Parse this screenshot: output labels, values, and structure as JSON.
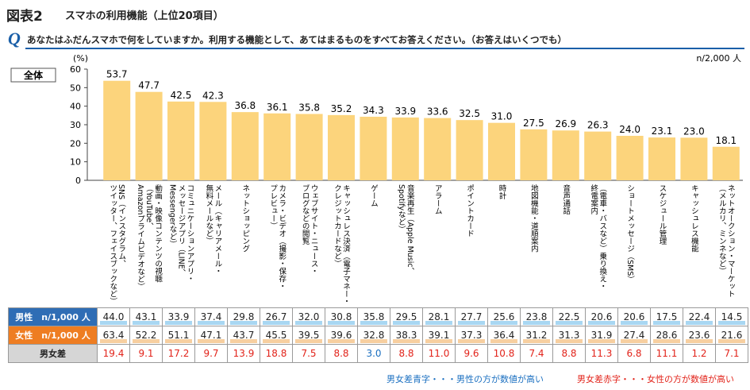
{
  "header": {
    "fig_label": "図表2",
    "title": "スマホの利用機能（上位20項目）",
    "q_mark": "Q",
    "question": "あなたはふだんスマホで何をしていますか。利用する機能として、あてはまるものをすべてお答えください。（お答えはいくつでも）"
  },
  "colors": {
    "bar": "#fcd47c",
    "male": "#2f6db5",
    "female": "#ee7d22",
    "diff_red": "#e2231a",
    "diff_blue": "#1a6fc0"
  },
  "chart_data": {
    "type": "bar",
    "segment_label": "全体",
    "y_unit": "(%)",
    "n_label": "n/2,000 人",
    "ylim": [
      0,
      60
    ],
    "yticks": [
      0,
      10,
      20,
      30,
      40,
      50,
      60
    ],
    "grid": false,
    "categories": [
      "SNS（インスタグラム、ツイッター、フェイスブックなど）",
      "動画・映像コンテンツの視聴（YouTube、Amazonプライムビデオなど）",
      "コミュニケーションアプリ・メッセージアプリ（LINE、Messengerなど）",
      "メール（キャリアメール・無料メールなど）",
      "ネットショッピング",
      "カメラ・ビデオ（撮影・保存・プレビュー）",
      "ウェブサイト・ニュース・ブログなどの閲覧",
      "キャッシュレス決済（電子マネー・クレジットカードなど）",
      "ゲーム",
      "音楽再生（Apple Music、Spotifyなど）",
      "アラーム",
      "ポイントカード",
      "時計",
      "地図機能・道順案内",
      "音声通話",
      "（電車・バスなど）乗り換え・終電案内",
      "ショートメッセージ（SMS）",
      "スケジュール管理",
      "キャッシュレス機能",
      "ネットオークション・マーケット（メルカリ、ミンネなど）"
    ],
    "category_lines": [
      [
        "SNS（インスタグラム、",
        "ツイッター、フェイスブックなど）"
      ],
      [
        "動画・映像コンテンツの視聴",
        "（YouTube、",
        "Amazonプライムビデオなど）"
      ],
      [
        "コミュニケーションアプリ・",
        "メッセージアプリ（LINE、",
        "Messengerなど）"
      ],
      [
        "メール（キャリアメール・",
        "無料メールなど）"
      ],
      [
        "ネットショッピング"
      ],
      [
        "カメラ・ビデオ（撮影・保存・",
        "プレビュー）"
      ],
      [
        "ウェブサイト・ニュース・",
        "ブログなどの閲覧"
      ],
      [
        "キャッシュレス決済（電子マネー・",
        "クレジットカードなど）"
      ],
      [
        "ゲーム"
      ],
      [
        "音楽再生（Apple Music、",
        "Spotifyなど）"
      ],
      [
        "アラーム"
      ],
      [
        "ポイントカード"
      ],
      [
        "時計"
      ],
      [
        "地図機能・道順案内"
      ],
      [
        "音声通話"
      ],
      [
        "（電車・バスなど）乗り換え・",
        "終電案内"
      ],
      [
        "ショートメッセージ（SMS）"
      ],
      [
        "スケジュール管理"
      ],
      [
        "キャッシュレス機能"
      ],
      [
        "ネットオークション・マーケット",
        "（メルカリ、ミンネなど）"
      ]
    ],
    "values": [
      53.7,
      47.7,
      42.5,
      42.3,
      36.8,
      36.1,
      35.8,
      35.2,
      34.3,
      33.9,
      33.6,
      32.5,
      31.0,
      27.5,
      26.9,
      26.3,
      24.0,
      23.1,
      23.0,
      18.1
    ],
    "value_labels": [
      "53.7",
      "47.7",
      "42.5",
      "42.3",
      "36.8",
      "36.1",
      "35.8",
      "35.2",
      "34.3",
      "33.9",
      "33.6",
      "32.5",
      "31.0",
      "27.5",
      "26.9",
      "26.3",
      "24.0",
      "23.1",
      "23.0",
      "18.1"
    ]
  },
  "table": {
    "rows": [
      {
        "label": "男性　n/1,000 人",
        "kind": "male",
        "values": [
          "44.0",
          "43.1",
          "33.9",
          "37.4",
          "29.8",
          "26.7",
          "32.0",
          "30.8",
          "35.8",
          "29.5",
          "28.1",
          "27.7",
          "25.6",
          "23.8",
          "22.5",
          "20.6",
          "20.6",
          "17.5",
          "22.4",
          "14.5"
        ]
      },
      {
        "label": "女性　n/1,000 人",
        "kind": "female",
        "values": [
          "63.4",
          "52.2",
          "51.1",
          "47.1",
          "43.7",
          "45.5",
          "39.5",
          "39.6",
          "32.8",
          "38.3",
          "39.1",
          "37.3",
          "36.4",
          "31.2",
          "31.3",
          "31.9",
          "27.4",
          "28.6",
          "23.6",
          "21.6"
        ]
      },
      {
        "label": "男女差",
        "kind": "diff",
        "values": [
          "19.4",
          "9.1",
          "17.2",
          "9.7",
          "13.9",
          "18.8",
          "7.5",
          "8.8",
          "3.0",
          "8.8",
          "11.0",
          "9.6",
          "10.8",
          "7.4",
          "8.8",
          "11.3",
          "6.8",
          "11.1",
          "1.2",
          "7.1"
        ],
        "colors": [
          "red",
          "red",
          "red",
          "red",
          "red",
          "red",
          "red",
          "red",
          "blue",
          "red",
          "red",
          "red",
          "red",
          "red",
          "red",
          "red",
          "red",
          "red",
          "red",
          "red"
        ]
      }
    ]
  },
  "legend": {
    "blue_note": "男女差青字・・・男性の方が数値が高い",
    "red_note": "男女差赤字・・・女性の方が数値が高い"
  }
}
